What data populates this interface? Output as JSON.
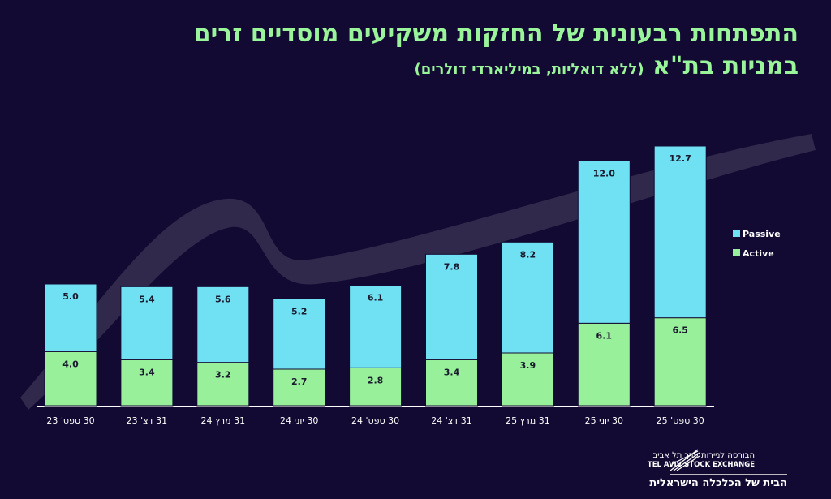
{
  "title": {
    "line1": "התפתחות רבעונית של החזקות משקיעים מוסדיים זרים",
    "line2_main": "במניות בת\"א",
    "line2_sub": "(ללא דואליות, במיליארדי דולרים)"
  },
  "chart_data": {
    "type": "bar",
    "stacked": true,
    "title": "התפתחות רבעונית של החזקות משקיעים מוסדיים זרים במניות בת\"א (ללא דואליות, במיליארדי דולרים)",
    "categories": [
      "30 ספט' 23",
      "31 דצ' 23",
      "31 מרץ 24",
      "30 יוני 24",
      "30 ספט' 24",
      "31 דצ' 24",
      "31 מרץ 25",
      "30 יוני 25",
      "30 ספט' 25"
    ],
    "series": [
      {
        "name": "Active",
        "color": "#98f09a",
        "values": [
          4.0,
          3.4,
          3.2,
          2.7,
          2.8,
          3.4,
          3.9,
          6.1,
          6.5
        ]
      },
      {
        "name": "Passive",
        "color": "#6fe1f2",
        "values": [
          5.0,
          5.4,
          5.6,
          5.2,
          6.1,
          7.8,
          8.2,
          12.0,
          12.7
        ]
      }
    ],
    "ylim": [
      0,
      20
    ],
    "grid": false,
    "legend": "right"
  },
  "logo": {
    "hebrew_name": "הבורסה לניירות ערך תל אביב",
    "english_name": "TEL AVIV STOCK EXCHANGE",
    "slogan": "הבית של הכלכלה הישראלית"
  }
}
